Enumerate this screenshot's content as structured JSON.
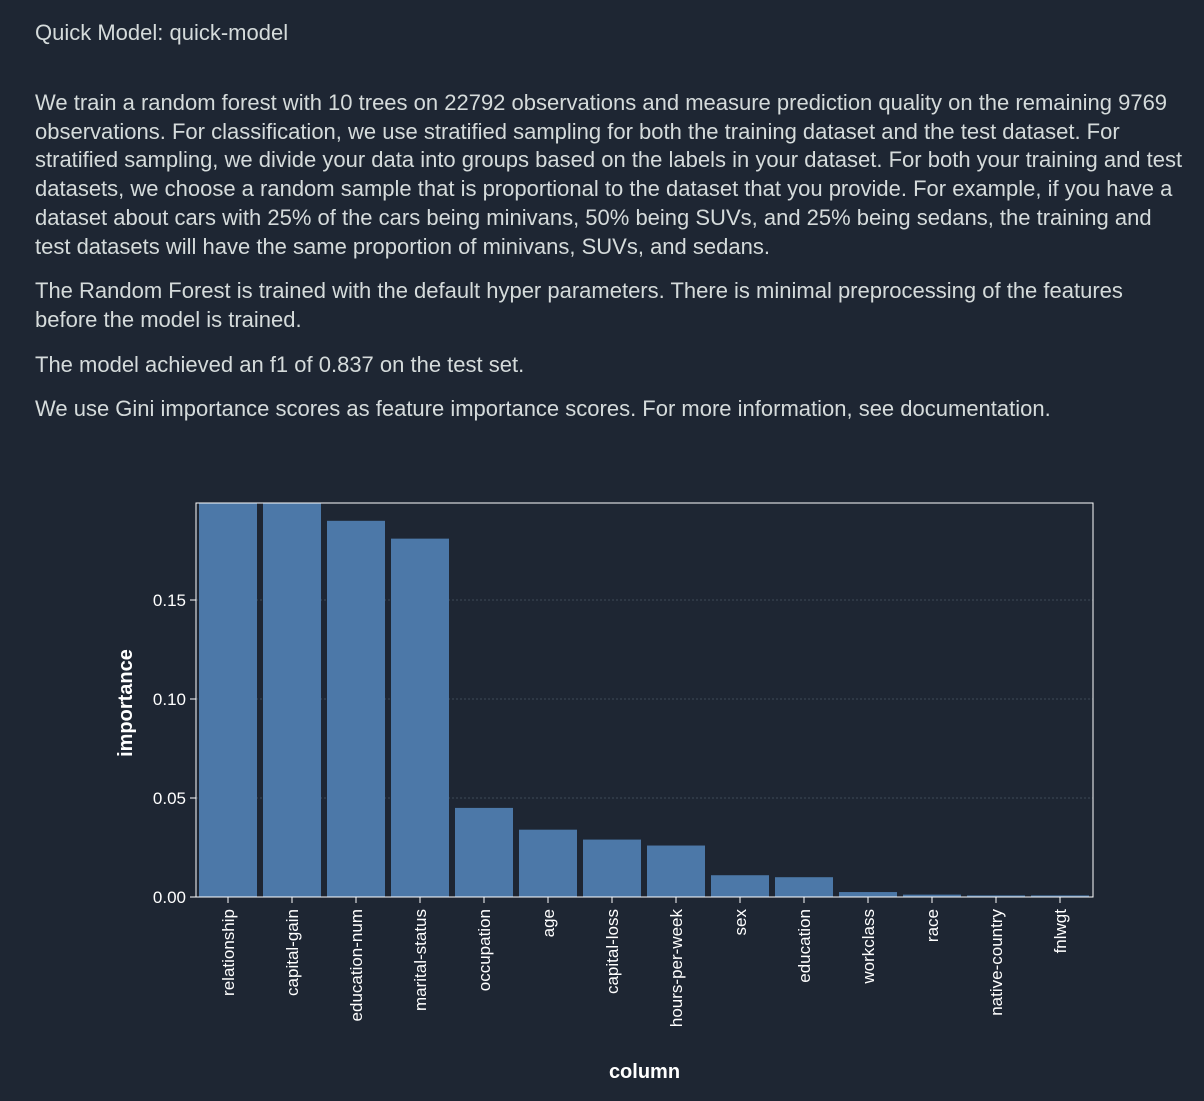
{
  "header": {
    "title": "Quick Model: quick-model"
  },
  "description": {
    "paragraph_1": "We train a random forest with 10 trees on 22792 observations and measure prediction quality on the remaining 9769 observations. For classification, we use stratified sampling for both the training dataset and the test dataset. For stratified sampling, we divide your data into groups based on the labels in your dataset. For both your training and test datasets, we choose a random sample that is proportional to the dataset that you provide. For example, if you have a dataset about cars with 25% of the cars being minivans, 50% being SUVs, and 25% being sedans, the training and test datasets will have the same proportion of minivans, SUVs, and sedans.",
    "paragraph_2": "The Random Forest is trained with the default hyper parameters. There is minimal preprocessing of the features before the model is trained.",
    "paragraph_3": "The model achieved an f1 of 0.837 on the test set.",
    "paragraph_4": "We use Gini importance scores as feature importance scores. For more information, see documentation."
  },
  "colors": {
    "background": "#1e2633",
    "text": "#d5dbdb",
    "bar": "#4c78a8",
    "axis": "#ffffff",
    "grid": "#3f4a57"
  },
  "chart_data": {
    "type": "bar",
    "xlabel": "column",
    "ylabel": "importance",
    "ylim": [
      0,
      0.199
    ],
    "yticks": [
      0.0,
      0.05,
      0.1,
      0.15
    ],
    "ytick_labels": [
      "0.00",
      "0.05",
      "0.10",
      "0.15"
    ],
    "grid": true,
    "categories": [
      "relationship",
      "capital-gain",
      "education-num",
      "marital-status",
      "occupation",
      "age",
      "capital-loss",
      "hours-per-week",
      "sex",
      "education",
      "workclass",
      "race",
      "native-country",
      "fnlwgt"
    ],
    "values": [
      0.199,
      0.199,
      0.19,
      0.181,
      0.045,
      0.034,
      0.029,
      0.026,
      0.011,
      0.01,
      0.0025,
      0.0012,
      0.0008,
      0.0008
    ]
  }
}
